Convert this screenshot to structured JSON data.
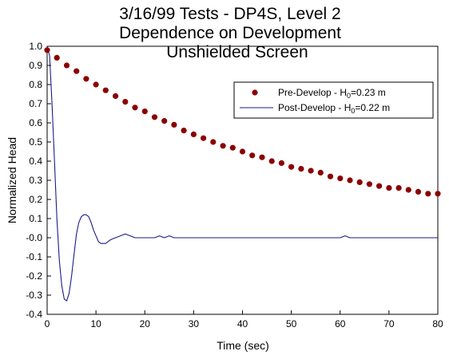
{
  "chart_data": {
    "type": "line",
    "title": [
      "3/16/99 Tests - DP4S, Level 2",
      "Dependence on Development",
      "Unshielded Screen"
    ],
    "xlabel": "Time (sec)",
    "ylabel": "Normalized Head",
    "xlim": [
      0,
      80
    ],
    "ylim": [
      -0.4,
      1.0
    ],
    "x_ticks": [
      "0",
      "10",
      "20",
      "30",
      "40",
      "50",
      "60",
      "70",
      "80"
    ],
    "y_ticks": [
      "1.0",
      "0.9",
      "0.8",
      "0.7",
      "0.6",
      "0.5",
      "0.4",
      "0.3",
      "0.2",
      "0.1",
      "-0.0",
      "-0.1",
      "-0.2",
      "-0.3",
      "-0.4"
    ],
    "grid": false,
    "legend_position": "top-right",
    "series": [
      {
        "name": "Pre-Develop - H0=0.23 m",
        "legend": {
          "prefix": "Pre-Develop - H",
          "sub": "0",
          "suffix": "=0.23 m"
        },
        "style": "markers",
        "color": "#8b0000",
        "x": [
          0,
          2,
          4,
          6,
          8,
          10,
          12,
          14,
          16,
          18,
          20,
          22,
          24,
          26,
          28,
          30,
          32,
          34,
          36,
          38,
          40,
          42,
          44,
          46,
          48,
          50,
          52,
          54,
          56,
          58,
          60,
          62,
          64,
          66,
          68,
          70,
          72,
          74,
          76,
          78,
          80
        ],
        "y": [
          0.98,
          0.94,
          0.9,
          0.87,
          0.83,
          0.8,
          0.77,
          0.74,
          0.71,
          0.68,
          0.66,
          0.63,
          0.61,
          0.59,
          0.56,
          0.54,
          0.52,
          0.5,
          0.48,
          0.47,
          0.45,
          0.43,
          0.42,
          0.4,
          0.39,
          0.37,
          0.36,
          0.35,
          0.34,
          0.32,
          0.31,
          0.3,
          0.29,
          0.28,
          0.27,
          0.26,
          0.26,
          0.25,
          0.24,
          0.23,
          0.23
        ]
      },
      {
        "name": "Post-Develop - H0=0.22 m",
        "legend": {
          "prefix": "Post-Develop - H",
          "sub": "0",
          "suffix": "=0.22 m"
        },
        "style": "line",
        "color": "#1a1a8c",
        "x": [
          0,
          0.5,
          1,
          1.5,
          2,
          2.5,
          3,
          3.5,
          4,
          4.5,
          5,
          5.5,
          6,
          6.5,
          7,
          7.5,
          8,
          8.5,
          9,
          9.5,
          10,
          10.5,
          11,
          11.5,
          12,
          12.5,
          13,
          14,
          15,
          16,
          17,
          18,
          20,
          22,
          23,
          24,
          25,
          26,
          28,
          30,
          35,
          40,
          50,
          60,
          61,
          62,
          63,
          70,
          80
        ],
        "y": [
          1.0,
          0.95,
          0.7,
          0.4,
          0.1,
          -0.12,
          -0.25,
          -0.32,
          -0.33,
          -0.29,
          -0.2,
          -0.09,
          0.02,
          0.08,
          0.11,
          0.12,
          0.12,
          0.11,
          0.08,
          0.04,
          0.01,
          -0.02,
          -0.03,
          -0.03,
          -0.03,
          -0.02,
          -0.01,
          0.0,
          0.01,
          0.02,
          0.01,
          0.0,
          0.0,
          0.0,
          0.01,
          0.0,
          0.01,
          0.0,
          0.0,
          0.0,
          0.0,
          0.0,
          0.0,
          0.0,
          0.01,
          0.0,
          0.0,
          0.0,
          0.0
        ]
      }
    ]
  }
}
